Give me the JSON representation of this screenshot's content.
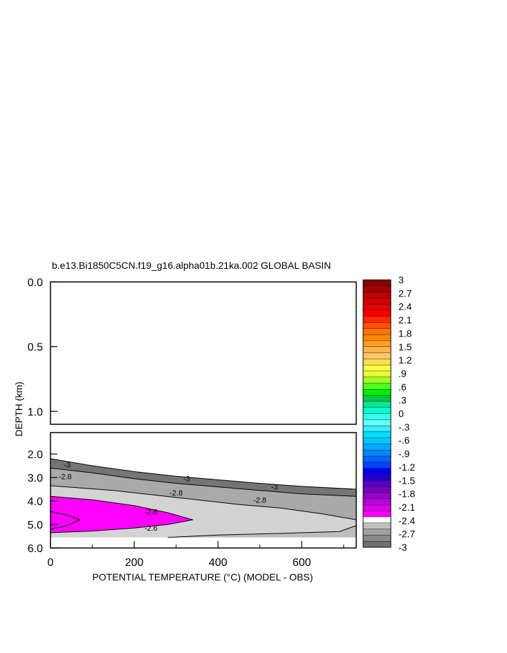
{
  "chart_data": {
    "type": "contour",
    "title": "b.e13.Bi1850C5CN.f19_g16.alpha01b.21ka.002 GLOBAL BASIN",
    "xlabel": "POTENTIAL TEMPERATURE (°C) (MODEL - OBS)",
    "ylabel": "DEPTH (km)",
    "xlim": [
      0,
      730
    ],
    "x_ticks": [
      {
        "value": 0,
        "label": "0"
      },
      {
        "value": 200,
        "label": "200"
      },
      {
        "value": 400,
        "label": "400"
      },
      {
        "value": 600,
        "label": "600"
      }
    ],
    "upper_panel": {
      "ylim": [
        0.0,
        1.1
      ],
      "y_ticks": [
        {
          "value": 0.0,
          "label": "0.0"
        },
        {
          "value": 0.5,
          "label": "0.5"
        },
        {
          "value": 1.0,
          "label": "1.0"
        }
      ]
    },
    "lower_panel": {
      "ylim": [
        1.1,
        6.0
      ],
      "y_ticks": [
        {
          "value": 2.0,
          "label": "2.0"
        },
        {
          "value": 3.0,
          "label": "3.0"
        },
        {
          "value": 4.0,
          "label": "4.0"
        },
        {
          "value": 5.0,
          "label": "5.0"
        },
        {
          "value": 6.0,
          "label": "6.0"
        }
      ]
    },
    "filled_regions": [
      {
        "level_min": -3.0,
        "level_max": -2.9,
        "color": "#757575",
        "points": [
          [
            0,
            2.2
          ],
          [
            100,
            2.5
          ],
          [
            200,
            2.75
          ],
          [
            300,
            2.95
          ],
          [
            400,
            3.1
          ],
          [
            500,
            3.25
          ],
          [
            600,
            3.38
          ],
          [
            730,
            3.5
          ],
          [
            730,
            3.8
          ],
          [
            600,
            3.7
          ],
          [
            500,
            3.55
          ],
          [
            400,
            3.4
          ],
          [
            300,
            3.25
          ],
          [
            200,
            3.05
          ],
          [
            100,
            2.8
          ],
          [
            0,
            2.6
          ]
        ]
      },
      {
        "level_min": -2.9,
        "level_max": -2.8,
        "color": "#a9a9a9",
        "points": [
          [
            0,
            2.6
          ],
          [
            100,
            2.8
          ],
          [
            200,
            3.05
          ],
          [
            300,
            3.25
          ],
          [
            400,
            3.4
          ],
          [
            500,
            3.55
          ],
          [
            600,
            3.7
          ],
          [
            730,
            3.8
          ],
          [
            730,
            4.8
          ],
          [
            650,
            4.55
          ],
          [
            550,
            4.3
          ],
          [
            450,
            4.15
          ],
          [
            350,
            3.95
          ],
          [
            250,
            3.75
          ],
          [
            150,
            3.55
          ],
          [
            0,
            3.35
          ]
        ]
      },
      {
        "level_min": -2.8,
        "level_max": -2.7,
        "color": "#d3d3d3",
        "points": [
          [
            0,
            3.35
          ],
          [
            150,
            3.55
          ],
          [
            250,
            3.75
          ],
          [
            350,
            3.95
          ],
          [
            450,
            4.15
          ],
          [
            550,
            4.3
          ],
          [
            650,
            4.55
          ],
          [
            730,
            4.8
          ],
          [
            730,
            5.55
          ],
          [
            0,
            5.55
          ]
        ]
      },
      {
        "level_min": -2.7,
        "level_max": -2.6,
        "color": "#bdbdbd",
        "points": [
          [
            280,
            5.55
          ],
          [
            400,
            5.45
          ],
          [
            550,
            5.38
          ],
          [
            690,
            5.3
          ],
          [
            730,
            5.05
          ],
          [
            730,
            5.55
          ]
        ]
      },
      {
        "level_min": -2.6,
        "level_max": -2.5,
        "color": "#ff00ff",
        "points": [
          [
            0,
            3.8
          ],
          [
            100,
            3.95
          ],
          [
            200,
            4.2
          ],
          [
            280,
            4.5
          ],
          [
            340,
            4.8
          ],
          [
            280,
            5.0
          ],
          [
            200,
            5.15
          ],
          [
            100,
            5.28
          ],
          [
            0,
            5.35
          ]
        ]
      }
    ],
    "contour_lines": [
      {
        "level": -3.0,
        "points": [
          [
            0,
            2.2
          ],
          [
            100,
            2.5
          ],
          [
            200,
            2.75
          ],
          [
            300,
            2.95
          ],
          [
            400,
            3.1
          ],
          [
            500,
            3.25
          ],
          [
            600,
            3.38
          ],
          [
            730,
            3.5
          ]
        ]
      },
      {
        "level": -2.9,
        "points": [
          [
            0,
            2.6
          ],
          [
            100,
            2.8
          ],
          [
            200,
            3.05
          ],
          [
            300,
            3.25
          ],
          [
            400,
            3.4
          ],
          [
            500,
            3.55
          ],
          [
            600,
            3.7
          ],
          [
            730,
            3.8
          ]
        ]
      },
      {
        "level": -2.8,
        "points": [
          [
            0,
            3.35
          ],
          [
            150,
            3.55
          ],
          [
            250,
            3.75
          ],
          [
            350,
            3.95
          ],
          [
            450,
            4.15
          ],
          [
            550,
            4.3
          ],
          [
            650,
            4.55
          ],
          [
            730,
            4.8
          ]
        ]
      },
      {
        "level": -2.6,
        "points": [
          [
            0,
            3.8
          ],
          [
            100,
            3.95
          ],
          [
            200,
            4.2
          ],
          [
            280,
            4.5
          ],
          [
            340,
            4.8
          ],
          [
            280,
            5.0
          ],
          [
            200,
            5.15
          ],
          [
            100,
            5.28
          ],
          [
            0,
            5.35
          ]
        ]
      },
      {
        "level": -2.5,
        "points": [
          [
            0,
            4.45
          ],
          [
            40,
            4.6
          ],
          [
            70,
            4.8
          ],
          [
            40,
            5.05
          ],
          [
            0,
            5.2
          ]
        ]
      },
      {
        "level": -2.7,
        "points": [
          [
            280,
            5.55
          ],
          [
            400,
            5.45
          ],
          [
            550,
            5.38
          ],
          [
            690,
            5.3
          ],
          [
            730,
            5.05
          ]
        ]
      }
    ],
    "contour_labels": [
      {
        "text": "-3",
        "x": 40,
        "y": 2.45
      },
      {
        "text": "-3",
        "x": 325,
        "y": 3.05
      },
      {
        "text": "-3",
        "x": 535,
        "y": 3.4
      },
      {
        "text": "-2.8",
        "x": 35,
        "y": 2.95
      },
      {
        "text": "-2.8",
        "x": 300,
        "y": 3.65
      },
      {
        "text": "-2.8",
        "x": 500,
        "y": 3.95
      },
      {
        "text": "-2.6",
        "x": 240,
        "y": 4.45
      },
      {
        "text": "-2.6",
        "x": 240,
        "y": 5.15
      }
    ],
    "colorbar": {
      "tick_labels": [
        "3",
        "2.7",
        "2.4",
        "2.1",
        "1.8",
        "1.5",
        "1.2",
        ".9",
        ".6",
        ".3",
        "0",
        "-.3",
        "-.6",
        "-.9",
        "-1.2",
        "-1.5",
        "-1.8",
        "-2.1",
        "-2.4",
        "-2.7",
        "-3"
      ],
      "colors": [
        "#8b0000",
        "#a50000",
        "#bf0000",
        "#d40000",
        "#e60000",
        "#ff0000",
        "#ff2a00",
        "#ff4f00",
        "#ff7400",
        "#ff8800",
        "#ff9e26",
        "#ffb34d",
        "#ffc866",
        "#ffdd55",
        "#ffff44",
        "#e6ff33",
        "#a0ff20",
        "#50ff20",
        "#00f000",
        "#00cc44",
        "#00e699",
        "#00ffcc",
        "#33ffee",
        "#66ffff",
        "#33eeff",
        "#00ddff",
        "#00c8ff",
        "#00aaff",
        "#0088ff",
        "#0066ff",
        "#0044ff",
        "#0000ee",
        "#2200cc",
        "#5500cc",
        "#7700bb",
        "#9900cc",
        "#bb00dd",
        "#dd00ee",
        "#ff00ff",
        "#ffffff",
        "#c0c0c0",
        "#a0a0a0",
        "#8a8a8a",
        "#707070"
      ]
    }
  }
}
